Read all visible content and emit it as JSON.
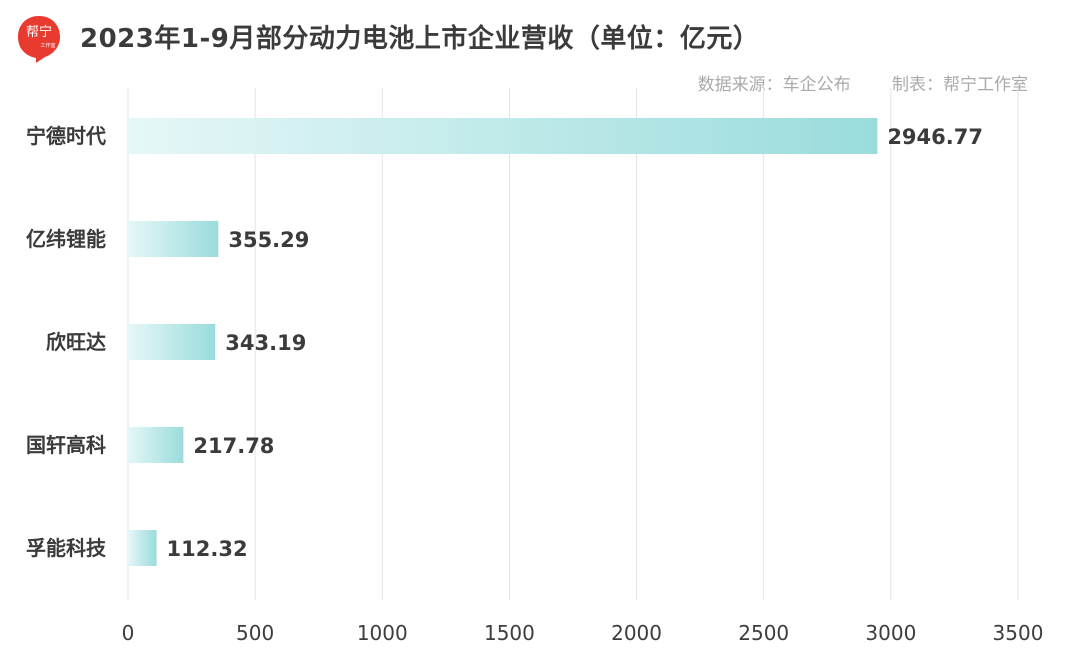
{
  "header": {
    "title": "2023年1-9月部分动力电池上市企业营收（单位：亿元）",
    "source": "数据来源：车企公布",
    "maker": "制表：帮宁工作室",
    "logo_text": "帮宁",
    "logo_small_text": "工作室"
  },
  "colors": {
    "bar_start": "#e6f7f7",
    "bar_end": "#9adcdc",
    "logo_red": "#e83a2f",
    "grid": "#e3e3e3"
  },
  "chart_data": {
    "type": "bar",
    "orientation": "horizontal",
    "title": "2023年1-9月部分动力电池上市企业营收（单位：亿元）",
    "unit": "亿元",
    "categories": [
      "宁德时代",
      "亿纬锂能",
      "欣旺达",
      "国轩高科",
      "孚能科技"
    ],
    "values": [
      2946.77,
      355.29,
      343.19,
      217.78,
      112.32
    ],
    "value_labels": [
      "2946.77",
      "355.29",
      "343.19",
      "217.78",
      "112.32"
    ],
    "xlim": [
      0,
      3500
    ],
    "x_ticks": [
      0,
      500,
      1000,
      1500,
      2000,
      2500,
      3000,
      3500
    ],
    "grid": "vertical",
    "legend": "none"
  }
}
